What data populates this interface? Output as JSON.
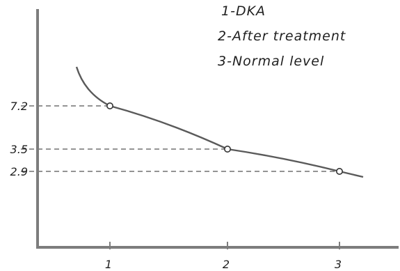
{
  "chart_data": {
    "type": "line",
    "categories": [
      "1",
      "2",
      "3"
    ],
    "series": [
      {
        "values": [
          7.2,
          3.5,
          2.9
        ]
      }
    ],
    "y_tick_labels": [
      "7.2",
      "3.5",
      "2.9"
    ],
    "x_tick_labels": [
      "1",
      "2",
      "3"
    ],
    "legend": [
      "1-DKA",
      "2-After treatment",
      "3-Normal level"
    ],
    "legend_position": "top-right",
    "reference_lines": "dashed horizontal lines from the y-axis to each data point",
    "grid": false,
    "colors": {
      "line": "#5a5a5a",
      "axis": "#7d7d7d",
      "text": "#1f1f1f"
    }
  }
}
